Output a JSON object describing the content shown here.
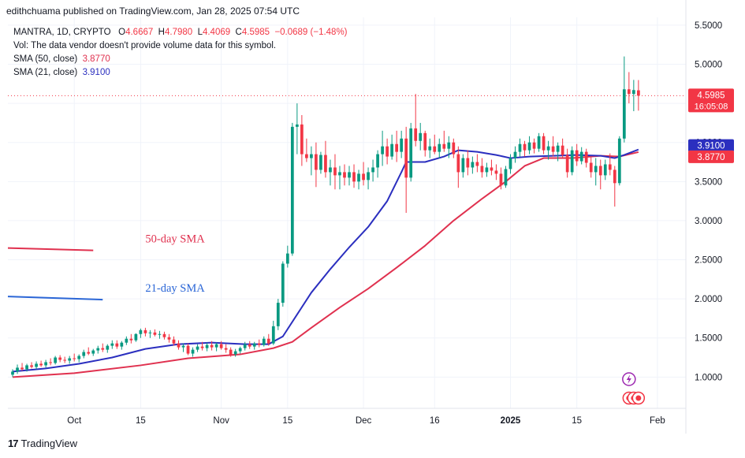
{
  "header": {
    "published": "edithchuama published on TradingView.com, Jan 28, 2025 07:54 UTC"
  },
  "legend": {
    "symbol": "MANTRA, 1D, CRYPTO",
    "o_label": "O",
    "o": "4.6667",
    "h_label": "H",
    "h": "4.7980",
    "l_label": "L",
    "l": "4.4069",
    "c_label": "C",
    "c": "4.5985",
    "change": "−0.0689 (−1.48%)",
    "vol_note": "Vol: The data vendor doesn't provide volume data for this symbol.",
    "sma50_label": "SMA (50, close)",
    "sma50_value": "3.8770",
    "sma21_label": "SMA (21, close)",
    "sma21_value": "3.9100"
  },
  "footer": {
    "brand": "TradingView",
    "logo_text": "17"
  },
  "colors": {
    "up": "#089981",
    "down": "#f23645",
    "sma50": "#e0314f",
    "sma21": "#2b2fbf",
    "grid": "#f0f3fa",
    "axis_text": "#131722"
  },
  "chart_data": {
    "type": "candlestick",
    "symbol": "MANTRA",
    "interval": "1D",
    "y_axis": {
      "ticks": [
        "5.5000",
        "5.0000",
        "4.5000",
        "4.0000",
        "3.5000",
        "3.0000",
        "2.5000",
        "2.0000",
        "1.5000",
        "1.0000"
      ],
      "tick_values": [
        5.5,
        5.0,
        4.5,
        4.0,
        3.5,
        3.0,
        2.5,
        2.0,
        1.5,
        1.0
      ],
      "ylim": [
        0.6,
        5.6
      ]
    },
    "x_axis": {
      "ticks": [
        {
          "label": "Oct",
          "date": "2024-10-01"
        },
        {
          "label": "15",
          "date": "2024-10-15"
        },
        {
          "label": "Nov",
          "date": "2024-11-01"
        },
        {
          "label": "15",
          "date": "2024-11-15"
        },
        {
          "label": "Dec",
          "date": "2024-12-01"
        },
        {
          "label": "16",
          "date": "2024-12-16"
        },
        {
          "label": "2025",
          "date": "2025-01-01"
        },
        {
          "label": "15",
          "date": "2025-01-15"
        },
        {
          "label": "Feb",
          "date": "2025-02-01"
        }
      ],
      "xlim": [
        "2024-09-17",
        "2025-02-07"
      ]
    },
    "price_labels": [
      {
        "value": "4.5985",
        "sub": "16:05:08",
        "y": 4.5985,
        "color": "#f23645"
      },
      {
        "value": "3.9100",
        "y": 3.91,
        "color": "#2b2fbf"
      },
      {
        "value": "3.8770",
        "y": 3.877,
        "color": "#f23645"
      }
    ],
    "annotations": [
      {
        "text": "50-day SMA",
        "color": "#e0314f",
        "line_y": [
          2.65,
          2.62
        ],
        "line_dates": [
          "2024-09-17",
          "2024-10-05"
        ],
        "text_date": "2024-10-16",
        "text_y": 2.72
      },
      {
        "text": "21-day SMA",
        "color": "#2b66d6",
        "line_y": [
          2.03,
          1.99
        ],
        "line_dates": [
          "2024-09-17",
          "2024-10-07"
        ],
        "text_date": "2024-10-16",
        "text_y": 2.09
      }
    ],
    "ohlc": [
      [
        "2024-09-18",
        1.03,
        1.1,
        1.0,
        1.07
      ],
      [
        "2024-09-19",
        1.07,
        1.16,
        1.04,
        1.12
      ],
      [
        "2024-09-20",
        1.12,
        1.18,
        1.08,
        1.1
      ],
      [
        "2024-09-21",
        1.1,
        1.17,
        1.07,
        1.15
      ],
      [
        "2024-09-22",
        1.15,
        1.19,
        1.11,
        1.13
      ],
      [
        "2024-09-23",
        1.13,
        1.2,
        1.1,
        1.17
      ],
      [
        "2024-09-24",
        1.17,
        1.21,
        1.13,
        1.15
      ],
      [
        "2024-09-25",
        1.15,
        1.22,
        1.12,
        1.19
      ],
      [
        "2024-09-26",
        1.19,
        1.24,
        1.15,
        1.18
      ],
      [
        "2024-09-27",
        1.18,
        1.27,
        1.16,
        1.25
      ],
      [
        "2024-09-28",
        1.25,
        1.28,
        1.19,
        1.22
      ],
      [
        "2024-09-29",
        1.22,
        1.26,
        1.18,
        1.21
      ],
      [
        "2024-09-30",
        1.21,
        1.27,
        1.17,
        1.24
      ],
      [
        "2024-10-01",
        1.24,
        1.3,
        1.2,
        1.23
      ],
      [
        "2024-10-02",
        1.23,
        1.29,
        1.19,
        1.27
      ],
      [
        "2024-10-03",
        1.27,
        1.35,
        1.24,
        1.32
      ],
      [
        "2024-10-04",
        1.32,
        1.38,
        1.28,
        1.3
      ],
      [
        "2024-10-05",
        1.3,
        1.36,
        1.27,
        1.34
      ],
      [
        "2024-10-06",
        1.34,
        1.4,
        1.3,
        1.37
      ],
      [
        "2024-10-07",
        1.37,
        1.43,
        1.32,
        1.35
      ],
      [
        "2024-10-08",
        1.35,
        1.42,
        1.31,
        1.4
      ],
      [
        "2024-10-09",
        1.4,
        1.47,
        1.36,
        1.43
      ],
      [
        "2024-10-10",
        1.43,
        1.47,
        1.36,
        1.39
      ],
      [
        "2024-10-11",
        1.39,
        1.46,
        1.35,
        1.44
      ],
      [
        "2024-10-12",
        1.44,
        1.52,
        1.41,
        1.49
      ],
      [
        "2024-10-13",
        1.49,
        1.55,
        1.43,
        1.47
      ],
      [
        "2024-10-14",
        1.47,
        1.56,
        1.45,
        1.55
      ],
      [
        "2024-10-15",
        1.55,
        1.62,
        1.5,
        1.6
      ],
      [
        "2024-10-16",
        1.6,
        1.63,
        1.52,
        1.56
      ],
      [
        "2024-10-17",
        1.56,
        1.6,
        1.5,
        1.57
      ],
      [
        "2024-10-18",
        1.57,
        1.61,
        1.52,
        1.54
      ],
      [
        "2024-10-19",
        1.54,
        1.59,
        1.49,
        1.55
      ],
      [
        "2024-10-20",
        1.55,
        1.58,
        1.48,
        1.51
      ],
      [
        "2024-10-21",
        1.51,
        1.55,
        1.44,
        1.48
      ],
      [
        "2024-10-22",
        1.48,
        1.52,
        1.4,
        1.43
      ],
      [
        "2024-10-23",
        1.43,
        1.47,
        1.35,
        1.38
      ],
      [
        "2024-10-24",
        1.38,
        1.43,
        1.32,
        1.4
      ],
      [
        "2024-10-25",
        1.4,
        1.43,
        1.28,
        1.3
      ],
      [
        "2024-10-26",
        1.3,
        1.38,
        1.26,
        1.35
      ],
      [
        "2024-10-27",
        1.35,
        1.42,
        1.32,
        1.39
      ],
      [
        "2024-10-28",
        1.39,
        1.45,
        1.34,
        1.37
      ],
      [
        "2024-10-29",
        1.37,
        1.44,
        1.33,
        1.41
      ],
      [
        "2024-10-30",
        1.41,
        1.46,
        1.34,
        1.38
      ],
      [
        "2024-10-31",
        1.38,
        1.44,
        1.33,
        1.42
      ],
      [
        "2024-11-01",
        1.42,
        1.46,
        1.35,
        1.37
      ],
      [
        "2024-11-02",
        1.37,
        1.42,
        1.31,
        1.35
      ],
      [
        "2024-11-03",
        1.35,
        1.38,
        1.26,
        1.29
      ],
      [
        "2024-11-04",
        1.29,
        1.36,
        1.26,
        1.33
      ],
      [
        "2024-11-05",
        1.33,
        1.39,
        1.3,
        1.37
      ],
      [
        "2024-11-06",
        1.37,
        1.45,
        1.34,
        1.42
      ],
      [
        "2024-11-07",
        1.42,
        1.46,
        1.36,
        1.39
      ],
      [
        "2024-11-08",
        1.39,
        1.45,
        1.35,
        1.43
      ],
      [
        "2024-11-09",
        1.43,
        1.48,
        1.38,
        1.41
      ],
      [
        "2024-11-10",
        1.41,
        1.52,
        1.39,
        1.49
      ],
      [
        "2024-11-11",
        1.49,
        1.55,
        1.4,
        1.43
      ],
      [
        "2024-11-12",
        1.43,
        1.72,
        1.41,
        1.65
      ],
      [
        "2024-11-13",
        1.65,
        2.0,
        1.6,
        1.95
      ],
      [
        "2024-11-14",
        1.95,
        2.48,
        1.9,
        2.45
      ],
      [
        "2024-11-15",
        2.45,
        2.68,
        2.4,
        2.58
      ],
      [
        "2024-11-16",
        2.58,
        4.25,
        2.55,
        4.2
      ],
      [
        "2024-11-17",
        4.2,
        4.5,
        3.85,
        4.23
      ],
      [
        "2024-11-18",
        4.23,
        4.35,
        3.7,
        3.85
      ],
      [
        "2024-11-19",
        3.85,
        4.05,
        3.75,
        3.8
      ],
      [
        "2024-11-20",
        3.8,
        3.95,
        3.58,
        3.85
      ],
      [
        "2024-11-21",
        3.85,
        4.0,
        3.43,
        3.65
      ],
      [
        "2024-11-22",
        3.65,
        3.88,
        3.6,
        3.84
      ],
      [
        "2024-11-23",
        3.84,
        4.02,
        3.55,
        3.62
      ],
      [
        "2024-11-24",
        3.62,
        3.78,
        3.45,
        3.68
      ],
      [
        "2024-11-25",
        3.68,
        3.85,
        3.4,
        3.58
      ],
      [
        "2024-11-26",
        3.58,
        3.7,
        3.4,
        3.62
      ],
      [
        "2024-11-27",
        3.62,
        3.72,
        3.45,
        3.55
      ],
      [
        "2024-11-28",
        3.55,
        3.7,
        3.45,
        3.62
      ],
      [
        "2024-11-29",
        3.62,
        3.72,
        3.42,
        3.5
      ],
      [
        "2024-11-30",
        3.5,
        3.65,
        3.4,
        3.6
      ],
      [
        "2024-12-01",
        3.6,
        3.75,
        3.45,
        3.52
      ],
      [
        "2024-12-02",
        3.52,
        3.68,
        3.4,
        3.62
      ],
      [
        "2024-12-03",
        3.62,
        3.78,
        3.5,
        3.68
      ],
      [
        "2024-12-04",
        3.68,
        3.9,
        3.55,
        3.85
      ],
      [
        "2024-12-05",
        3.85,
        4.15,
        3.7,
        3.95
      ],
      [
        "2024-12-06",
        3.95,
        4.05,
        3.72,
        3.82
      ],
      [
        "2024-12-07",
        3.82,
        4.1,
        3.78,
        3.98
      ],
      [
        "2024-12-08",
        3.98,
        4.15,
        3.75,
        3.88
      ],
      [
        "2024-12-09",
        3.88,
        4.15,
        3.8,
        4.05
      ],
      [
        "2024-12-10",
        4.05,
        4.2,
        3.1,
        3.55
      ],
      [
        "2024-12-11",
        3.55,
        4.25,
        3.5,
        4.18
      ],
      [
        "2024-12-12",
        4.18,
        4.62,
        3.95,
        4.02
      ],
      [
        "2024-12-13",
        4.02,
        4.25,
        3.9,
        4.12
      ],
      [
        "2024-12-14",
        4.12,
        4.15,
        3.82,
        3.9
      ],
      [
        "2024-12-15",
        3.9,
        4.05,
        3.8,
        3.95
      ],
      [
        "2024-12-16",
        3.95,
        4.1,
        3.85,
        3.88
      ],
      [
        "2024-12-17",
        3.88,
        4.05,
        3.8,
        3.98
      ],
      [
        "2024-12-18",
        3.98,
        4.15,
        3.88,
        3.92
      ],
      [
        "2024-12-19",
        3.92,
        4.08,
        3.8,
        4.0
      ],
      [
        "2024-12-20",
        4.0,
        4.05,
        3.8,
        3.85
      ],
      [
        "2024-12-21",
        3.85,
        3.95,
        3.42,
        3.62
      ],
      [
        "2024-12-22",
        3.62,
        3.85,
        3.55,
        3.8
      ],
      [
        "2024-12-23",
        3.8,
        3.9,
        3.58,
        3.68
      ],
      [
        "2024-12-24",
        3.68,
        3.82,
        3.6,
        3.75
      ],
      [
        "2024-12-25",
        3.75,
        3.85,
        3.62,
        3.7
      ],
      [
        "2024-12-26",
        3.7,
        3.8,
        3.55,
        3.62
      ],
      [
        "2024-12-27",
        3.62,
        3.74,
        3.56,
        3.68
      ],
      [
        "2024-12-28",
        3.68,
        3.78,
        3.58,
        3.64
      ],
      [
        "2024-12-29",
        3.64,
        3.72,
        3.52,
        3.6
      ],
      [
        "2024-12-30",
        3.6,
        3.68,
        3.4,
        3.45
      ],
      [
        "2024-12-31",
        3.45,
        3.7,
        3.42,
        3.66
      ],
      [
        "2025-01-01",
        3.66,
        3.85,
        3.6,
        3.8
      ],
      [
        "2025-01-02",
        3.8,
        3.95,
        3.74,
        3.88
      ],
      [
        "2025-01-03",
        3.88,
        4.05,
        3.82,
        3.98
      ],
      [
        "2025-01-04",
        3.98,
        4.02,
        3.82,
        3.9
      ],
      [
        "2025-01-05",
        3.9,
        4.08,
        3.85,
        4.0
      ],
      [
        "2025-01-06",
        4.0,
        4.05,
        3.86,
        3.92
      ],
      [
        "2025-01-07",
        3.92,
        4.12,
        3.88,
        4.08
      ],
      [
        "2025-01-08",
        4.08,
        4.12,
        3.85,
        3.9
      ],
      [
        "2025-01-09",
        3.9,
        4.02,
        3.78,
        3.95
      ],
      [
        "2025-01-10",
        3.95,
        4.08,
        3.82,
        3.88
      ],
      [
        "2025-01-11",
        3.88,
        4.0,
        3.76,
        3.96
      ],
      [
        "2025-01-12",
        3.96,
        4.05,
        3.8,
        3.84
      ],
      [
        "2025-01-13",
        3.84,
        3.92,
        3.55,
        3.62
      ],
      [
        "2025-01-14",
        3.62,
        3.95,
        3.58,
        3.9
      ],
      [
        "2025-01-15",
        3.9,
        3.98,
        3.7,
        3.76
      ],
      [
        "2025-01-16",
        3.76,
        3.94,
        3.72,
        3.88
      ],
      [
        "2025-01-17",
        3.88,
        3.92,
        3.68,
        3.74
      ],
      [
        "2025-01-18",
        3.74,
        3.82,
        3.55,
        3.62
      ],
      [
        "2025-01-19",
        3.62,
        3.8,
        3.45,
        3.7
      ],
      [
        "2025-01-20",
        3.7,
        3.78,
        3.4,
        3.58
      ],
      [
        "2025-01-21",
        3.58,
        3.78,
        3.52,
        3.72
      ],
      [
        "2025-01-22",
        3.72,
        3.86,
        3.58,
        3.65
      ],
      [
        "2025-01-23",
        3.65,
        3.7,
        3.18,
        3.48
      ],
      [
        "2025-01-24",
        3.48,
        4.08,
        3.45,
        4.05
      ],
      [
        "2025-01-25",
        4.05,
        5.1,
        4.0,
        4.68
      ],
      [
        "2025-01-26",
        4.68,
        4.9,
        4.5,
        4.62
      ],
      [
        "2025-01-27",
        4.62,
        4.8,
        4.4,
        4.67
      ],
      [
        "2025-01-28",
        4.6667,
        4.798,
        4.4069,
        4.5985
      ]
    ],
    "sma21": [
      [
        "2024-09-18",
        1.07
      ],
      [
        "2024-09-25",
        1.11
      ],
      [
        "2024-10-02",
        1.17
      ],
      [
        "2024-10-09",
        1.25
      ],
      [
        "2024-10-16",
        1.36
      ],
      [
        "2024-10-23",
        1.42
      ],
      [
        "2024-10-30",
        1.44
      ],
      [
        "2024-11-06",
        1.42
      ],
      [
        "2024-11-11",
        1.42
      ],
      [
        "2024-11-14",
        1.52
      ],
      [
        "2024-11-17",
        1.8
      ],
      [
        "2024-11-20",
        2.08
      ],
      [
        "2024-11-24",
        2.38
      ],
      [
        "2024-11-28",
        2.66
      ],
      [
        "2024-12-02",
        2.92
      ],
      [
        "2024-12-06",
        3.25
      ],
      [
        "2024-12-09",
        3.62
      ],
      [
        "2024-12-10",
        3.75
      ],
      [
        "2024-12-14",
        3.75
      ],
      [
        "2024-12-18",
        3.82
      ],
      [
        "2024-12-21",
        3.9
      ],
      [
        "2024-12-25",
        3.88
      ],
      [
        "2024-12-29",
        3.84
      ],
      [
        "2025-01-01",
        3.8
      ],
      [
        "2025-01-05",
        3.82
      ],
      [
        "2025-01-10",
        3.83
      ],
      [
        "2025-01-15",
        3.84
      ],
      [
        "2025-01-20",
        3.83
      ],
      [
        "2025-01-23",
        3.8
      ],
      [
        "2025-01-25",
        3.84
      ],
      [
        "2025-01-28",
        3.91
      ]
    ],
    "sma50": [
      [
        "2024-09-18",
        1.0
      ],
      [
        "2024-10-01",
        1.05
      ],
      [
        "2024-10-15",
        1.15
      ],
      [
        "2024-10-25",
        1.24
      ],
      [
        "2024-11-05",
        1.29
      ],
      [
        "2024-11-12",
        1.37
      ],
      [
        "2024-11-16",
        1.45
      ],
      [
        "2024-11-20",
        1.63
      ],
      [
        "2024-11-26",
        1.89
      ],
      [
        "2024-12-02",
        2.13
      ],
      [
        "2024-12-08",
        2.4
      ],
      [
        "2024-12-14",
        2.68
      ],
      [
        "2024-12-20",
        3.0
      ],
      [
        "2024-12-26",
        3.28
      ],
      [
        "2024-12-31",
        3.5
      ],
      [
        "2025-01-04",
        3.7
      ],
      [
        "2025-01-08",
        3.8
      ],
      [
        "2025-01-14",
        3.8
      ],
      [
        "2025-01-20",
        3.83
      ],
      [
        "2025-01-24",
        3.82
      ],
      [
        "2025-01-28",
        3.877
      ]
    ]
  }
}
